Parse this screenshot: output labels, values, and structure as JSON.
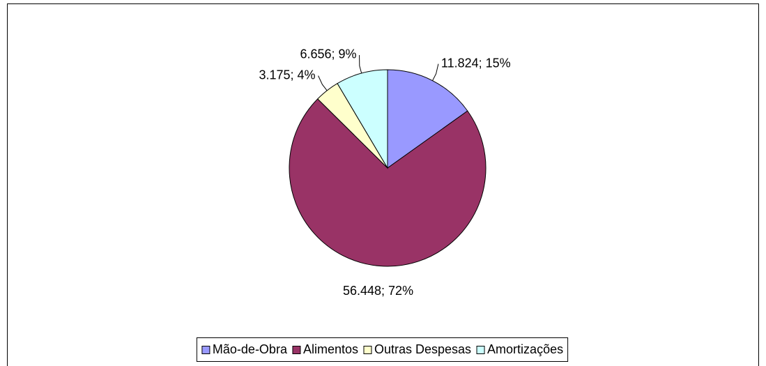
{
  "chart_data": {
    "type": "pie",
    "categories": [
      "Mão-de-Obra",
      "Alimentos",
      "Outras Despesas",
      "Amortizações"
    ],
    "values": [
      11824,
      56448,
      3175,
      6656
    ],
    "value_labels": [
      "11.824; 15%",
      "56.448; 72%",
      "3.175; 4%",
      "6.656; 9%"
    ],
    "colors": [
      "#9999ff",
      "#993366",
      "#ffffcc",
      "#ccffff"
    ],
    "legend": "bottom"
  }
}
